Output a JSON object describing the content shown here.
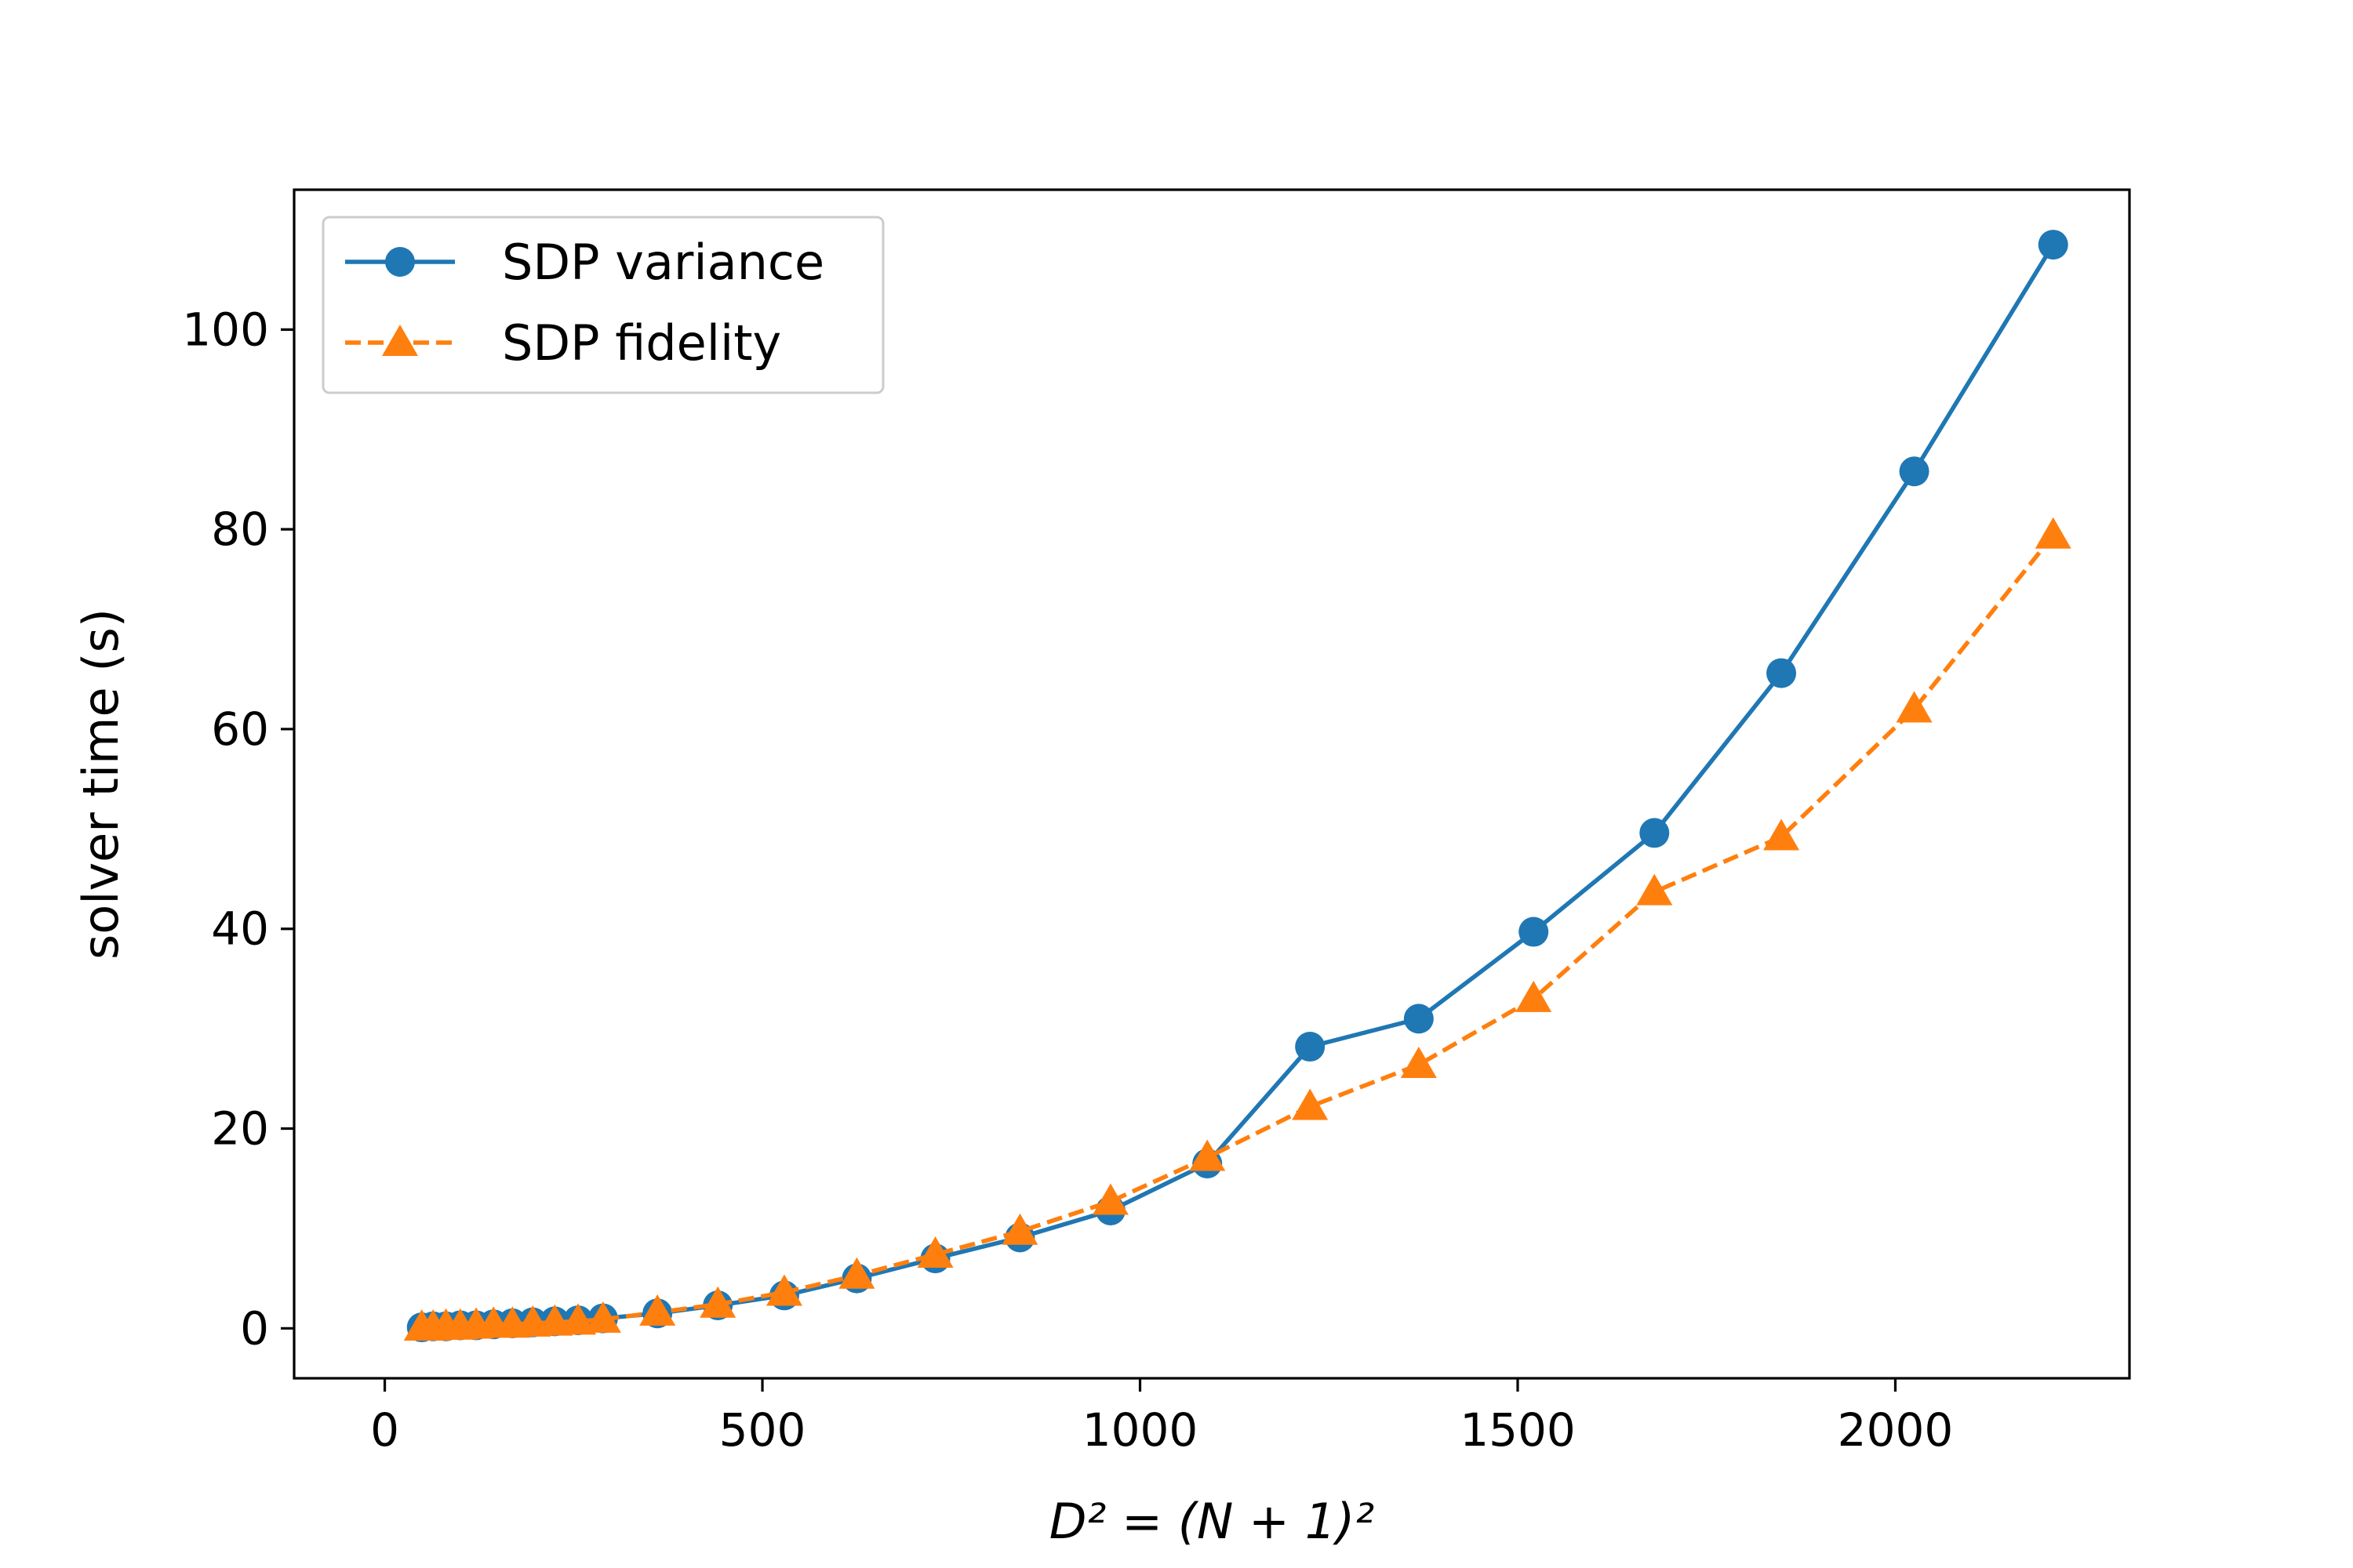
{
  "chart_data": {
    "type": "line",
    "title": "",
    "xlabel": "D² = (N + 1)²",
    "ylabel": "solver time (s)",
    "xlim": [
      -120,
      2310
    ],
    "ylim": [
      -5,
      114
    ],
    "xticks": [
      0,
      500,
      1000,
      1500,
      2000
    ],
    "yticks": [
      0,
      20,
      40,
      60,
      80,
      100
    ],
    "grid": false,
    "legend_position": "upper left",
    "series": [
      {
        "name": "SDP variance",
        "color": "#1f77b4",
        "marker": "circle",
        "linestyle": "solid",
        "x": [
          49,
          64,
          81,
          100,
          121,
          144,
          169,
          196,
          225,
          256,
          289,
          361,
          441,
          529,
          625,
          729,
          841,
          961,
          1089,
          1225,
          1369,
          1521,
          1681,
          1849,
          2025,
          2209
        ],
        "y": [
          0.1,
          0.2,
          0.2,
          0.3,
          0.3,
          0.4,
          0.5,
          0.6,
          0.7,
          0.8,
          1.0,
          1.5,
          2.3,
          3.3,
          5.0,
          7.0,
          9.1,
          11.8,
          16.5,
          28.2,
          31.0,
          39.7,
          49.6,
          65.6,
          85.8,
          108.5
        ]
      },
      {
        "name": "SDP fidelity",
        "color": "#ff7f0e",
        "marker": "triangle",
        "linestyle": "dashed",
        "x": [
          49,
          64,
          81,
          100,
          121,
          144,
          169,
          196,
          225,
          256,
          289,
          361,
          441,
          529,
          625,
          729,
          841,
          961,
          1089,
          1225,
          1369,
          1521,
          1681,
          1849,
          2025,
          2209
        ],
        "y": [
          0.1,
          0.1,
          0.2,
          0.2,
          0.3,
          0.4,
          0.4,
          0.5,
          0.6,
          0.7,
          0.9,
          1.6,
          2.4,
          3.6,
          5.3,
          7.4,
          9.7,
          12.7,
          17.1,
          22.2,
          26.4,
          33.0,
          43.7,
          49.2,
          62.0,
          79.4
        ]
      }
    ]
  }
}
